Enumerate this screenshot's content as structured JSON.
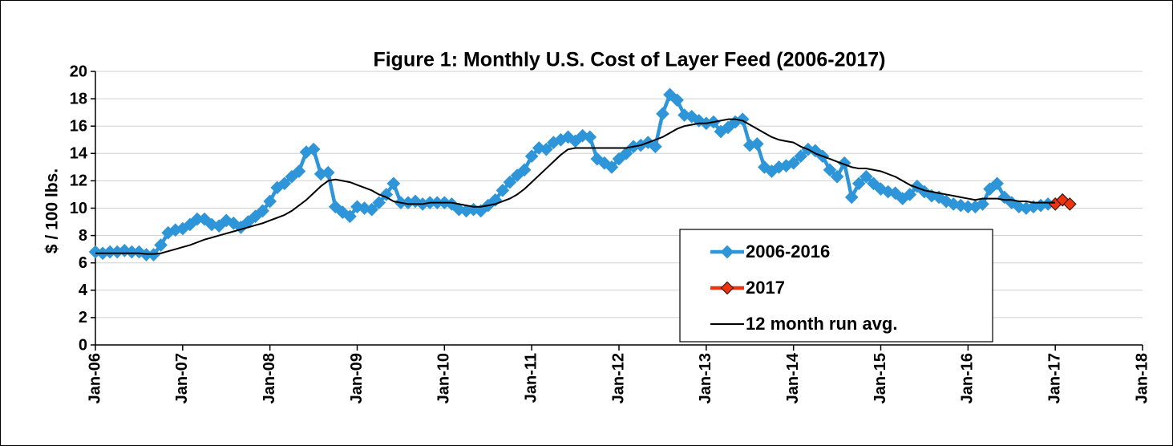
{
  "chart_data": {
    "type": "line",
    "title": "Figure 1: Monthly U.S. Cost of Layer Feed  (2006-2017)",
    "y_label": "$ / 100 lbs.",
    "ylim": [
      0,
      20
    ],
    "yticks": [
      0,
      2,
      4,
      6,
      8,
      10,
      12,
      14,
      16,
      18,
      20
    ],
    "xlim": [
      "2006-01",
      "2018-01"
    ],
    "xticks": [
      {
        "value": "2006-01",
        "label": "Jan-06"
      },
      {
        "value": "2007-01",
        "label": "Jan-07"
      },
      {
        "value": "2008-01",
        "label": "Jan-08"
      },
      {
        "value": "2009-01",
        "label": "Jan-09"
      },
      {
        "value": "2010-01",
        "label": "Jan-10"
      },
      {
        "value": "2011-01",
        "label": "Jan-11"
      },
      {
        "value": "2012-01",
        "label": "Jan-12"
      },
      {
        "value": "2013-01",
        "label": "Jan-13"
      },
      {
        "value": "2014-01",
        "label": "Jan-14"
      },
      {
        "value": "2015-01",
        "label": "Jan-15"
      },
      {
        "value": "2016-01",
        "label": "Jan-16"
      },
      {
        "value": "2017-01",
        "label": "Jan-17"
      },
      {
        "value": "2018-01",
        "label": "Jan-18"
      }
    ],
    "grid": true,
    "legend": "lower right",
    "series": [
      {
        "name": "2006-2016",
        "color": "#2e96d8",
        "marker": "diamond",
        "x": [
          "2006-01",
          "2006-02",
          "2006-03",
          "2006-04",
          "2006-05",
          "2006-06",
          "2006-07",
          "2006-08",
          "2006-09",
          "2006-10",
          "2006-11",
          "2006-12",
          "2007-01",
          "2007-02",
          "2007-03",
          "2007-04",
          "2007-05",
          "2007-06",
          "2007-07",
          "2007-08",
          "2007-09",
          "2007-10",
          "2007-11",
          "2007-12",
          "2008-01",
          "2008-02",
          "2008-03",
          "2008-04",
          "2008-05",
          "2008-06",
          "2008-07",
          "2008-08",
          "2008-09",
          "2008-10",
          "2008-11",
          "2008-12",
          "2009-01",
          "2009-02",
          "2009-03",
          "2009-04",
          "2009-05",
          "2009-06",
          "2009-07",
          "2009-08",
          "2009-09",
          "2009-10",
          "2009-11",
          "2009-12",
          "2010-01",
          "2010-02",
          "2010-03",
          "2010-04",
          "2010-05",
          "2010-06",
          "2010-07",
          "2010-08",
          "2010-09",
          "2010-10",
          "2010-11",
          "2010-12",
          "2011-01",
          "2011-02",
          "2011-03",
          "2011-04",
          "2011-05",
          "2011-06",
          "2011-07",
          "2011-08",
          "2011-09",
          "2011-10",
          "2011-11",
          "2011-12",
          "2012-01",
          "2012-02",
          "2012-03",
          "2012-04",
          "2012-05",
          "2012-06",
          "2012-07",
          "2012-08",
          "2012-09",
          "2012-10",
          "2012-11",
          "2012-12",
          "2013-01",
          "2013-02",
          "2013-03",
          "2013-04",
          "2013-05",
          "2013-06",
          "2013-07",
          "2013-08",
          "2013-09",
          "2013-10",
          "2013-11",
          "2013-12",
          "2014-01",
          "2014-02",
          "2014-03",
          "2014-04",
          "2014-05",
          "2014-06",
          "2014-07",
          "2014-08",
          "2014-09",
          "2014-10",
          "2014-11",
          "2014-12",
          "2015-01",
          "2015-02",
          "2015-03",
          "2015-04",
          "2015-05",
          "2015-06",
          "2015-07",
          "2015-08",
          "2015-09",
          "2015-10",
          "2015-11",
          "2015-12",
          "2016-01",
          "2016-02",
          "2016-03",
          "2016-04",
          "2016-05",
          "2016-06",
          "2016-07",
          "2016-08",
          "2016-09",
          "2016-10",
          "2016-11",
          "2016-12"
        ],
        "values": [
          6.8,
          6.7,
          6.8,
          6.8,
          6.9,
          6.8,
          6.8,
          6.6,
          6.6,
          7.3,
          8.2,
          8.4,
          8.5,
          8.8,
          9.2,
          9.2,
          8.8,
          8.7,
          9.1,
          8.9,
          8.6,
          9.0,
          9.4,
          9.8,
          10.5,
          11.5,
          11.8,
          12.3,
          12.7,
          14.1,
          14.3,
          12.5,
          12.6,
          10.1,
          9.7,
          9.4,
          10.1,
          10.0,
          9.9,
          10.4,
          11.0,
          11.8,
          10.4,
          10.4,
          10.5,
          10.3,
          10.4,
          10.4,
          10.4,
          10.3,
          9.9,
          9.8,
          9.9,
          9.8,
          10.2,
          10.6,
          11.3,
          11.9,
          12.4,
          12.8,
          13.8,
          14.4,
          14.3,
          14.8,
          15.0,
          15.2,
          14.9,
          15.3,
          15.2,
          13.6,
          13.3,
          13.0,
          13.6,
          14.0,
          14.5,
          14.6,
          14.8,
          14.5,
          16.9,
          18.3,
          17.9,
          16.8,
          16.7,
          16.4,
          16.2,
          16.3,
          15.6,
          15.9,
          16.3,
          16.5,
          14.6,
          14.7,
          13.0,
          12.7,
          13.0,
          13.1,
          13.3,
          13.8,
          14.3,
          14.2,
          13.8,
          12.8,
          12.3,
          13.3,
          10.8,
          11.8,
          12.3,
          11.8,
          11.4,
          11.2,
          11.1,
          10.7,
          11.0,
          11.6,
          11.2,
          10.9,
          10.8,
          10.5,
          10.3,
          10.2,
          10.1,
          10.1,
          10.3,
          11.4,
          11.8,
          10.8,
          10.4,
          10.1,
          10.0,
          10.1,
          10.2,
          10.3
        ]
      },
      {
        "name": "2017",
        "color": "#ee3311",
        "marker": "diamond",
        "x": [
          "2017-01",
          "2017-02",
          "2017-03"
        ],
        "values": [
          10.3,
          10.6,
          10.3
        ]
      },
      {
        "name": "12 month run avg.",
        "color": "#000000",
        "marker": "none",
        "x": [
          "2006-01",
          "2006-02",
          "2006-03",
          "2006-04",
          "2006-05",
          "2006-06",
          "2006-07",
          "2006-08",
          "2006-09",
          "2006-10",
          "2006-11",
          "2006-12",
          "2007-01",
          "2007-02",
          "2007-03",
          "2007-04",
          "2007-05",
          "2007-06",
          "2007-07",
          "2007-08",
          "2007-09",
          "2007-10",
          "2007-11",
          "2007-12",
          "2008-01",
          "2008-02",
          "2008-03",
          "2008-04",
          "2008-05",
          "2008-06",
          "2008-07",
          "2008-08",
          "2008-09",
          "2008-10",
          "2008-11",
          "2008-12",
          "2009-01",
          "2009-02",
          "2009-03",
          "2009-04",
          "2009-05",
          "2009-06",
          "2009-07",
          "2009-08",
          "2009-09",
          "2009-10",
          "2009-11",
          "2009-12",
          "2010-01",
          "2010-02",
          "2010-03",
          "2010-04",
          "2010-05",
          "2010-06",
          "2010-07",
          "2010-08",
          "2010-09",
          "2010-10",
          "2010-11",
          "2010-12",
          "2011-01",
          "2011-02",
          "2011-03",
          "2011-04",
          "2011-05",
          "2011-06",
          "2011-07",
          "2011-08",
          "2011-09",
          "2011-10",
          "2011-11",
          "2011-12",
          "2012-01",
          "2012-02",
          "2012-03",
          "2012-04",
          "2012-05",
          "2012-06",
          "2012-07",
          "2012-08",
          "2012-09",
          "2012-10",
          "2012-11",
          "2012-12",
          "2013-01",
          "2013-02",
          "2013-03",
          "2013-04",
          "2013-05",
          "2013-06",
          "2013-07",
          "2013-08",
          "2013-09",
          "2013-10",
          "2013-11",
          "2013-12",
          "2014-01",
          "2014-02",
          "2014-03",
          "2014-04",
          "2014-05",
          "2014-06",
          "2014-07",
          "2014-08",
          "2014-09",
          "2014-10",
          "2014-11",
          "2014-12",
          "2015-01",
          "2015-02",
          "2015-03",
          "2015-04",
          "2015-05",
          "2015-06",
          "2015-07",
          "2015-08",
          "2015-09",
          "2015-10",
          "2015-11",
          "2015-12",
          "2016-01",
          "2016-02",
          "2016-03",
          "2016-04",
          "2016-05",
          "2016-06",
          "2016-07",
          "2016-08",
          "2016-09",
          "2016-10",
          "2016-11",
          "2016-12",
          "2017-01"
        ],
        "values": [
          6.7,
          6.7,
          6.7,
          6.7,
          6.7,
          6.7,
          6.7,
          6.65,
          6.65,
          6.7,
          6.85,
          7.0,
          7.15,
          7.3,
          7.5,
          7.7,
          7.85,
          8.0,
          8.15,
          8.3,
          8.45,
          8.6,
          8.75,
          8.9,
          9.1,
          9.3,
          9.5,
          9.8,
          10.2,
          10.6,
          11.1,
          11.6,
          12.0,
          12.1,
          12.0,
          11.9,
          11.7,
          11.5,
          11.3,
          11.0,
          10.8,
          10.5,
          10.4,
          10.3,
          10.3,
          10.3,
          10.4,
          10.4,
          10.4,
          10.4,
          10.3,
          10.2,
          10.1,
          10.1,
          10.2,
          10.3,
          10.5,
          10.7,
          11.0,
          11.4,
          11.9,
          12.4,
          12.9,
          13.4,
          13.9,
          14.3,
          14.4,
          14.4,
          14.4,
          14.4,
          14.4,
          14.4,
          14.4,
          14.4,
          14.5,
          14.6,
          14.8,
          15.0,
          15.2,
          15.5,
          15.8,
          16.0,
          16.1,
          16.2,
          16.2,
          16.3,
          16.4,
          16.5,
          16.5,
          16.4,
          16.1,
          15.8,
          15.5,
          15.2,
          15.0,
          14.9,
          14.8,
          14.5,
          14.3,
          14.0,
          13.8,
          13.6,
          13.4,
          13.2,
          13.0,
          12.9,
          12.9,
          12.8,
          12.7,
          12.5,
          12.3,
          12.0,
          11.7,
          11.5,
          11.3,
          11.2,
          11.1,
          11.0,
          10.9,
          10.8,
          10.7,
          10.6,
          10.7,
          10.7,
          10.7,
          10.6,
          10.6,
          10.5,
          10.5,
          10.4,
          10.4,
          10.4,
          10.4
        ]
      }
    ]
  }
}
